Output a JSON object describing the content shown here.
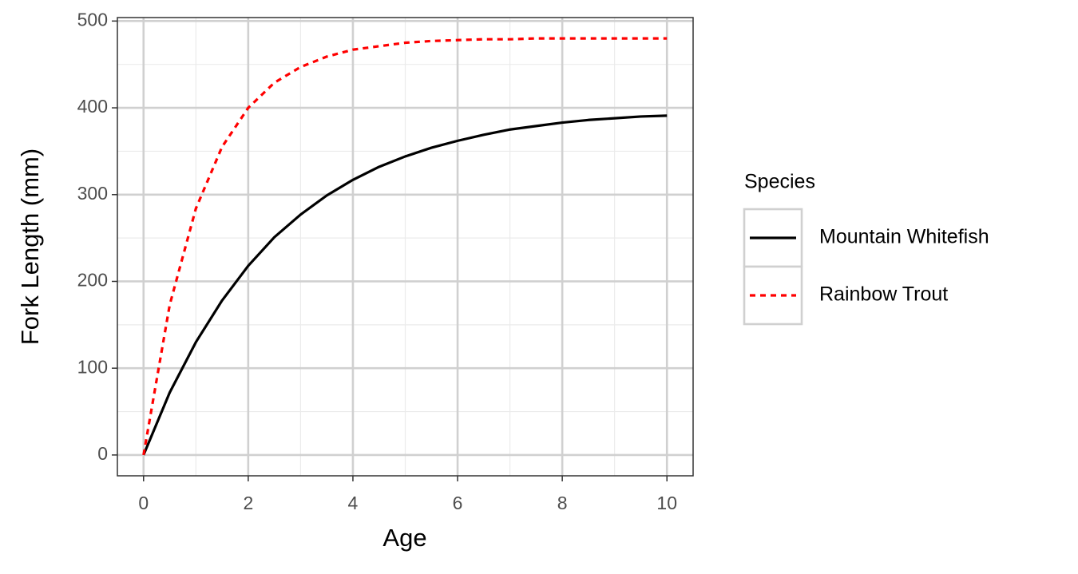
{
  "chart_data": {
    "type": "line",
    "x_label": "Age",
    "y_label": "Fork Length (mm)",
    "legend_title": "Species",
    "legend_position": "right",
    "grid": true,
    "x": [
      0,
      0.5,
      1,
      1.5,
      2,
      2.5,
      3,
      3.5,
      4,
      4.5,
      5,
      5.5,
      6,
      6.5,
      7,
      7.5,
      8,
      8.5,
      9,
      9.5,
      10
    ],
    "series": [
      {
        "name": "Mountain Whitefish",
        "color": "#000000",
        "dash": "solid",
        "values": [
          0,
          72,
          130,
          178,
          218,
          251,
          277,
          299,
          317,
          332,
          344,
          354,
          362,
          369,
          375,
          379,
          383,
          386,
          388,
          390,
          391
        ]
      },
      {
        "name": "Rainbow Trout",
        "color": "#ff0000",
        "dash": "dashed",
        "values": [
          0,
          173,
          284,
          355,
          400,
          429,
          447,
          459,
          467,
          471,
          475,
          477,
          478,
          479,
          479,
          480,
          480,
          480,
          480,
          480,
          480
        ]
      }
    ],
    "xlim": [
      -0.5,
      10.5
    ],
    "xticks": [
      0,
      2,
      4,
      6,
      8,
      10
    ],
    "ylim": [
      -24,
      504
    ],
    "yticks": [
      0,
      100,
      200,
      300,
      400,
      500
    ]
  }
}
